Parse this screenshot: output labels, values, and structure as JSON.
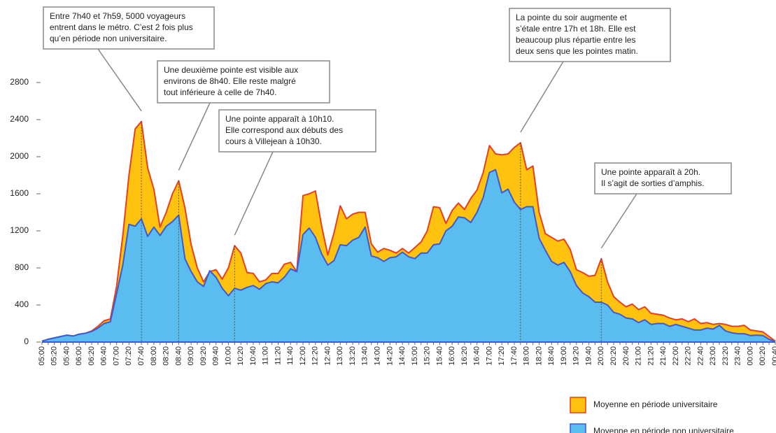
{
  "chart_data": {
    "type": "area",
    "categories": [
      "05:00",
      null,
      "05:20",
      null,
      "05:40",
      null,
      "06:00",
      null,
      "06:20",
      null,
      "06:40",
      null,
      "07:00",
      null,
      "07:20",
      null,
      "07:40",
      null,
      "08:00",
      null,
      "08:20",
      null,
      "08:40",
      null,
      "09:00",
      null,
      "09:20",
      null,
      "09:40",
      null,
      "10:00",
      null,
      "10:20",
      null,
      "10:40",
      null,
      "11:00",
      null,
      "11:20",
      null,
      "11:40",
      null,
      "12:00",
      null,
      "12:20",
      null,
      "12:40",
      null,
      "13:00",
      null,
      "13:20",
      null,
      "13:40",
      null,
      "14:00",
      null,
      "14:20",
      null,
      "14:40",
      null,
      "15:00",
      null,
      "15:20",
      null,
      "15:40",
      null,
      "16:00",
      null,
      "16:20",
      null,
      "16:40",
      null,
      "17:00",
      null,
      "17:20",
      null,
      "17:40",
      null,
      "18:00",
      null,
      "18:20",
      null,
      "18:40",
      null,
      "19:00",
      null,
      "19:20",
      null,
      "19:40",
      null,
      "20:00",
      null,
      "20:20",
      null,
      "20:40",
      null,
      "21:00",
      null,
      "21:20",
      null,
      "21:40",
      null,
      "22:00",
      null,
      "22:20",
      null,
      "22:40",
      null,
      "23:00",
      null,
      "23:20",
      null,
      "23:40",
      null,
      "00:00",
      null,
      "00:20",
      null,
      "00:40"
    ],
    "series": [
      {
        "name": "Moyenne en période universitaire",
        "color": "#ffc20e",
        "line_color": "#e8401c",
        "values": [
          10,
          30,
          45,
          60,
          75,
          65,
          85,
          95,
          120,
          170,
          230,
          250,
          600,
          1150,
          1800,
          2300,
          2380,
          1880,
          1650,
          1240,
          1400,
          1600,
          1740,
          1450,
          1050,
          800,
          650,
          760,
          780,
          680,
          800,
          1040,
          960,
          750,
          740,
          650,
          670,
          740,
          740,
          840,
          860,
          760,
          1580,
          1600,
          1630,
          1250,
          940,
          1180,
          1470,
          1330,
          1380,
          1400,
          1400,
          1060,
          970,
          1010,
          990,
          960,
          1010,
          960,
          1020,
          1080,
          1200,
          1460,
          1450,
          1280,
          1420,
          1500,
          1430,
          1550,
          1640,
          1830,
          2120,
          2030,
          2020,
          2030,
          2100,
          2150,
          1860,
          1900,
          1400,
          1170,
          1130,
          1090,
          1110,
          1000,
          780,
          750,
          710,
          720,
          900,
          650,
          490,
          430,
          380,
          410,
          350,
          380,
          310,
          300,
          290,
          260,
          240,
          250,
          220,
          250,
          200,
          210,
          190,
          200,
          190,
          170,
          170,
          180,
          130,
          120,
          110,
          60,
          10
        ]
      },
      {
        "name": "Moyenne en période non universitaire",
        "color": "#5bbcf0",
        "line_color": "#3b5bd6",
        "values": [
          10,
          30,
          45,
          60,
          75,
          65,
          85,
          95,
          115,
          150,
          200,
          220,
          520,
          830,
          1270,
          1250,
          1330,
          1140,
          1240,
          1150,
          1250,
          1300,
          1370,
          900,
          760,
          650,
          600,
          770,
          700,
          580,
          500,
          580,
          560,
          590,
          610,
          570,
          630,
          650,
          640,
          700,
          790,
          760,
          1160,
          1230,
          1130,
          950,
          830,
          880,
          1050,
          1040,
          1100,
          1130,
          1240,
          930,
          910,
          870,
          910,
          920,
          970,
          920,
          900,
          960,
          960,
          1050,
          1060,
          1200,
          1250,
          1350,
          1340,
          1290,
          1400,
          1560,
          1830,
          1860,
          1610,
          1650,
          1510,
          1430,
          1460,
          1460,
          1120,
          990,
          870,
          830,
          860,
          760,
          610,
          530,
          490,
          430,
          430,
          400,
          320,
          300,
          260,
          250,
          210,
          240,
          190,
          200,
          200,
          170,
          190,
          170,
          150,
          130,
          130,
          150,
          140,
          180,
          120,
          100,
          90,
          90,
          70,
          75,
          70,
          30,
          5
        ]
      }
    ],
    "ylim": [
      0,
      2800
    ],
    "yticks": [
      0,
      400,
      800,
      1200,
      1600,
      2000,
      2400,
      2800
    ],
    "grid": false,
    "annotations": [
      {
        "lines": [
          "Entre 7h40 et 7h59, 5000 voyageurs",
          "entrent dans le métro. C’est 2 fois plus",
          "qu’en période non universitaire."
        ]
      },
      {
        "lines": [
          "Une deuxième pointe est visible aux",
          "environs de 8h40. Elle reste malgré",
          "tout inférieure à celle de 7h40."
        ]
      },
      {
        "lines": [
          "Une pointe apparaît à 10h10.",
          "Elle correspond aux débuts des",
          "cours à Villejean à 10h30."
        ]
      },
      {
        "lines": [
          "La pointe du soir augmente et",
          "s’étale entre 17h et 18h. Elle est",
          "beaucoup plus répartie entre les",
          "deux sens que les pointes matin."
        ]
      },
      {
        "lines": [
          "Une pointe apparaît à 20h.",
          "Il s’agit de sorties d’amphis."
        ]
      }
    ]
  }
}
